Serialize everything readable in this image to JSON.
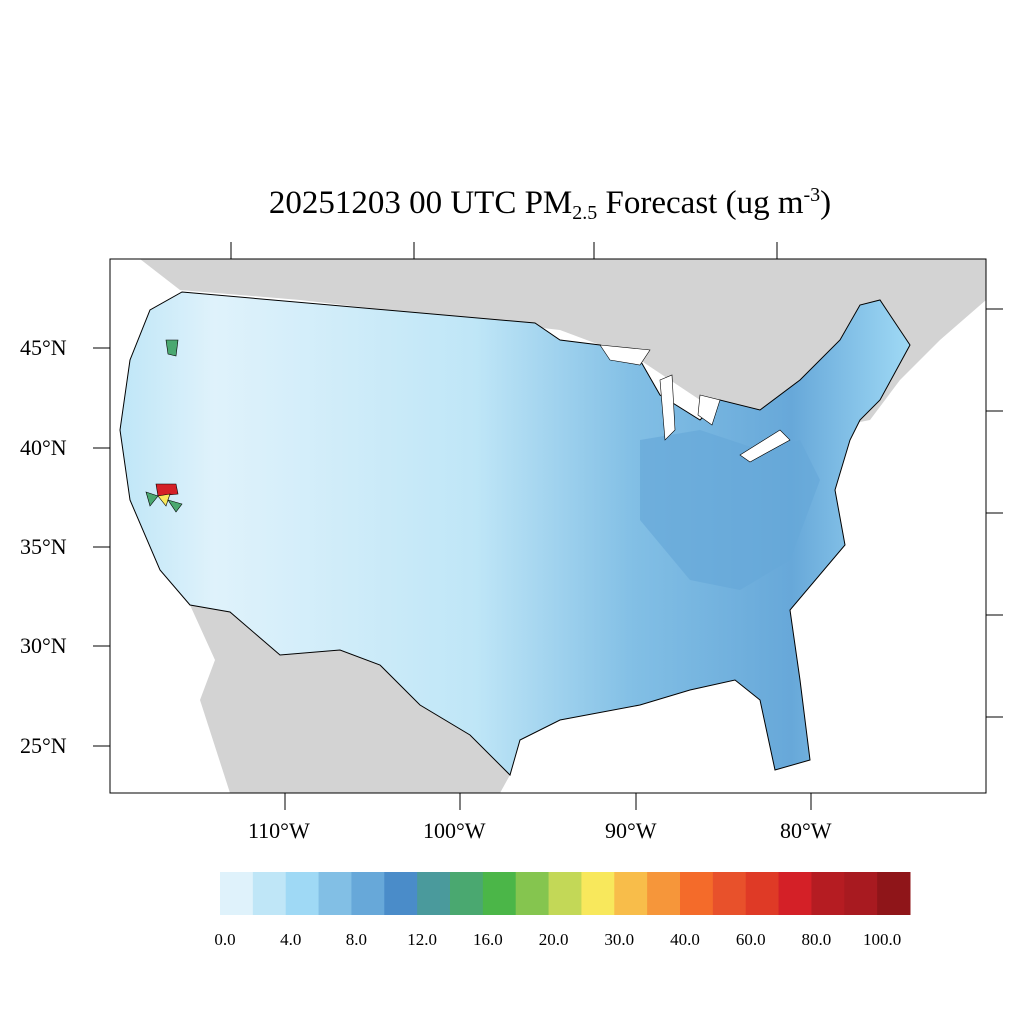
{
  "title": {
    "date": "20251203",
    "hour": "00",
    "tz": "UTC",
    "pollutant": "PM",
    "pollutant_sub": "2.5",
    "word": "Forecast",
    "units_pre": "(ug m",
    "units_sup": "-3",
    "units_post": ")"
  },
  "axes": {
    "lat_labels": [
      "45°N",
      "40°N",
      "35°N",
      "30°N",
      "25°N"
    ],
    "lon_labels": [
      "110°W",
      "100°W",
      "90°W",
      "80°W"
    ]
  },
  "colorbar": {
    "labels": [
      "0.0",
      "4.0",
      "8.0",
      "12.0",
      "16.0",
      "20.0",
      "30.0",
      "40.0",
      "60.0",
      "80.0",
      "100.0"
    ],
    "colors": [
      "#dff2fb",
      "#bfe6f7",
      "#9fd9f5",
      "#82bfe5",
      "#67a8d9",
      "#4a8cc9",
      "#4a9a9c",
      "#4aa870",
      "#4bb648",
      "#85c54f",
      "#c3d857",
      "#f8e85c",
      "#f8bd4a",
      "#f6963a",
      "#f46b2a",
      "#e8512b",
      "#df3a26",
      "#d42027",
      "#b51c22",
      "#a81a20",
      "#8f1519"
    ]
  },
  "map_colors": {
    "land_outside": "#d3d3d3",
    "water": "#ffffff",
    "border": "#000000"
  }
}
